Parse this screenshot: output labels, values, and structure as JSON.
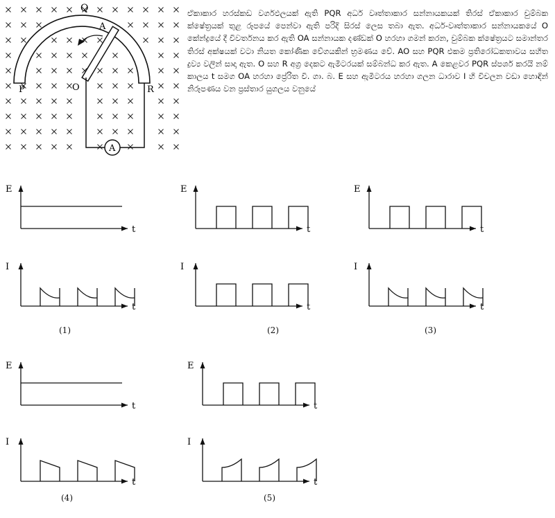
{
  "question_text": "ඒකාකාර හරස්කඩ වර්ගඵලයක් ඇති PQR අර්ධ වෘත්තාකාර සන්නායකයක් තිරස් ඒකාකාර චුම්බක ක්ෂේත්‍රයක් තුළ රූපයේ පෙන්වා ඇති පරිදි සිරස් ලෙස තබා ඇත. අර්ධ-වෘත්තාකාර සන්නායකයේ O කේන්ද්‍රයේ දී විවර්තනය කර ඇති OA සන්නායක දණ්ඩක් O හරහා ගමන් කරන, චුම්බක ක්ෂේත්‍රයට සමාන්තර තිරස් අක්ෂයක් වටා නියත කෝණික වේගයකින් භ්‍රමණය වේ. AO සහ PQR එකම ප්‍රතිරෝධකතාවය සහිත ද්‍රව්‍ය වලින් සාදා ඇත. O සහ R අග්‍ර දෙකට ඇමීටරයක් සම්බන්ධ කර ඇත. A කෙළවර PQR ස්පර්ශ කරයි නම් කාලය t සමග OA හරහා ප්‍රේරිත වි. ගා. බ. E සහ ඇමීටරය හරහා ගලන ධාරාව I හි විචලන වඩා හොඳින් නිරූපණය වන ප්‍රස්තාර යුගලය වනුයේ",
  "figure": {
    "labels": {
      "Q": "Q",
      "A": "A",
      "P": "P",
      "O": "O",
      "R": "R",
      "ammeter": "A"
    },
    "field_symbol": "×"
  },
  "axes": {
    "e": "E",
    "i": "I",
    "t": "t"
  },
  "options": [
    {
      "label": "(1)",
      "e_shape": "constant",
      "i_shape": "decay"
    },
    {
      "label": "(2)",
      "e_shape": "square",
      "i_shape": "square"
    },
    {
      "label": "(3)",
      "e_shape": "square",
      "i_shape": "decay"
    },
    {
      "label": "(4)",
      "e_shape": "constant",
      "i_shape": "decline"
    },
    {
      "label": "(5)",
      "e_shape": "square",
      "i_shape": "rise"
    }
  ]
}
